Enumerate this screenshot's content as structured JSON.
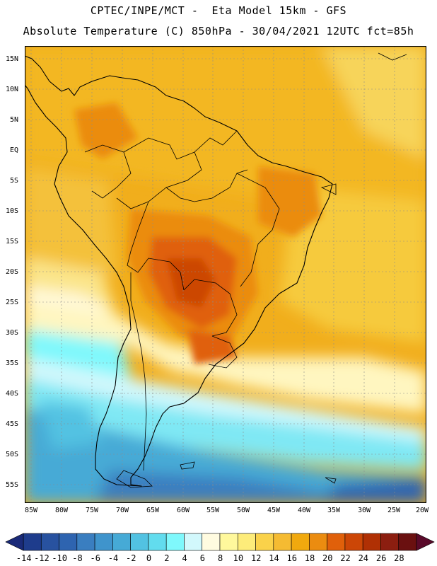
{
  "header": {
    "line1": "CPTEC/INPE/MCT -  Eta Model 15km - GFS",
    "line2": "Absolute Temperature (C) 850hPa - 30/04/2021 12UTC fct=85h"
  },
  "map": {
    "lat_labels": [
      "15N",
      "10N",
      "5N",
      "EQ",
      "5S",
      "10S",
      "15S",
      "20S",
      "25S",
      "30S",
      "35S",
      "40S",
      "45S",
      "50S",
      "55S"
    ],
    "lon_labels": [
      "85W",
      "80W",
      "75W",
      "70W",
      "65W",
      "60W",
      "55W",
      "50W",
      "45W",
      "40W",
      "35W",
      "30W",
      "25W",
      "20W"
    ]
  },
  "colorbar": {
    "labels": [
      "-14",
      "-12",
      "-10",
      "-8",
      "-6",
      "-4",
      "-2",
      "0",
      "2",
      "4",
      "6",
      "8",
      "10",
      "12",
      "14",
      "16",
      "18",
      "20",
      "22",
      "24",
      "26",
      "28"
    ],
    "colors": [
      "#1e3c8c",
      "#2852a0",
      "#2e64b0",
      "#3a7ec0",
      "#3f94cc",
      "#46aad6",
      "#52c2e2",
      "#62dcee",
      "#7ff8fc",
      "#d2f8fc",
      "#fffbe0",
      "#fff89c",
      "#fdec7a",
      "#fad24a",
      "#f5bb32",
      "#f1a90e",
      "#eb8c10",
      "#e0600a",
      "#cc4606",
      "#b03004",
      "#8c1e10",
      "#6a1010"
    ],
    "low_arrow_color": "#1a2a78",
    "high_arrow_color": "#5a0a2a"
  }
}
